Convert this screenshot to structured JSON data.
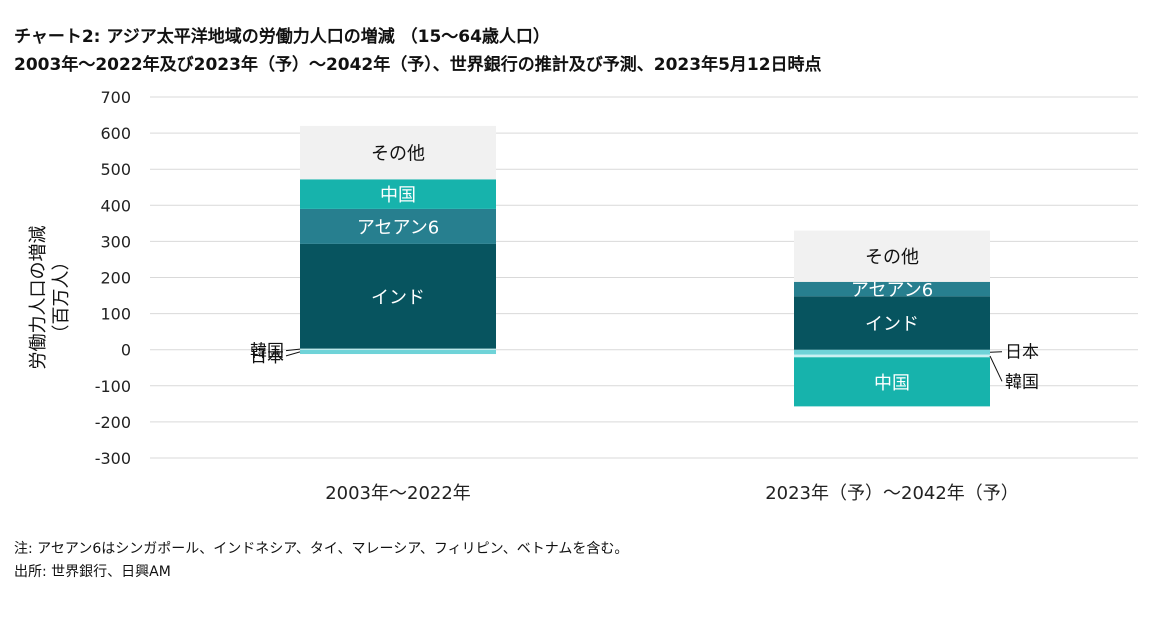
{
  "header": {
    "title_line1": "チャート2: アジア太平洋地域の労働力人口の増減 （15～64歳人口）",
    "title_line2": "2003年～2022年及び2023年（予）～2042年（予）、世界銀行の推計及び予測、2023年5月12日時点"
  },
  "footer": {
    "note": "注: アセアン6はシンガポール、インドネシア、タイ、マレーシア、フィリピン、ベトナムを含む。",
    "source": "出所: 世界銀行、日興AM"
  },
  "chart_data": {
    "type": "bar",
    "stacked": true,
    "ylabel": "労働力人口の増減\n（百万人）",
    "ylim": [
      -300,
      700
    ],
    "yticks": [
      700,
      600,
      500,
      400,
      300,
      200,
      100,
      0,
      -100,
      -200,
      -300
    ],
    "grid": true,
    "categories": [
      "2003年～2022年",
      "2023年（予）～2042年（予）"
    ],
    "series": [
      {
        "name": "日本",
        "values": [
          -12,
          -14
        ],
        "color": "#6fd3d8",
        "label": "outside"
      },
      {
        "name": "韓国",
        "values": [
          3,
          -7
        ],
        "color": "#c9f0f2",
        "label": "outside"
      },
      {
        "name": "インド",
        "values": [
          290,
          148
        ],
        "color": "#07545f",
        "label": "inside"
      },
      {
        "name": "アセアン6",
        "values": [
          97,
          40
        ],
        "color": "#277f8f",
        "label": "inside"
      },
      {
        "name": "中国",
        "values": [
          82,
          -136
        ],
        "color": "#17b3ac",
        "label": "inside"
      },
      {
        "name": "その他",
        "values": [
          148,
          142
        ],
        "color": "#f1f1f1",
        "label": "inside"
      }
    ]
  }
}
